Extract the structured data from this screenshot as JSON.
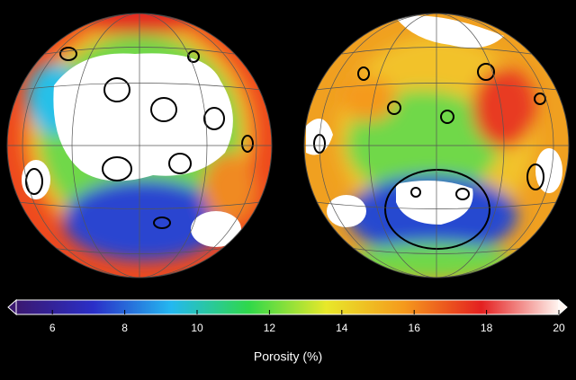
{
  "colorbar": {
    "label": "Porosity (%)",
    "lim": [
      5,
      20
    ],
    "ticks": [
      6,
      8,
      10,
      12,
      14,
      16,
      18,
      20
    ],
    "colormap": [
      "#3b1870",
      "#2a2fc8",
      "#24b8f0",
      "#2fd84a",
      "#e8e82a",
      "#f59a1c",
      "#e42020",
      "#fff5f0"
    ],
    "extend": "both"
  }
}
